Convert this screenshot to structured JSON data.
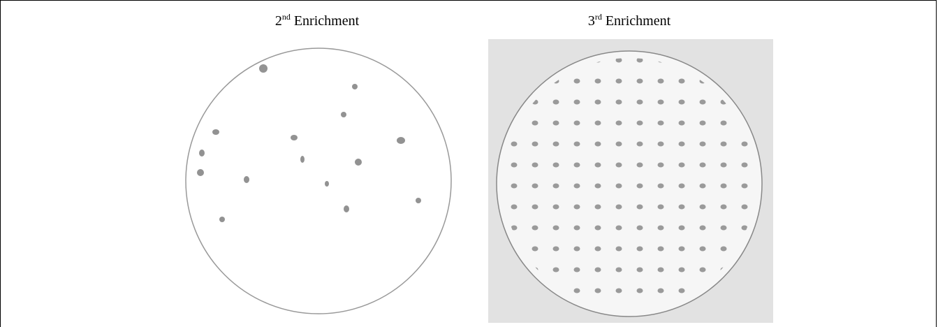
{
  "labels": [
    {
      "number": "2",
      "suffix": "nd",
      "text": "Enrichment"
    },
    {
      "number": "3",
      "suffix": "rd",
      "text": "Enrichment"
    }
  ]
}
